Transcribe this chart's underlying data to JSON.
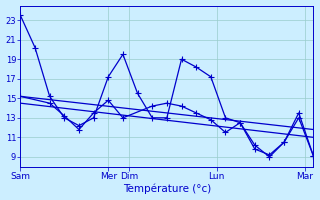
{
  "background_color": "#cceeff",
  "grid_color": "#99cccc",
  "line_color": "#0000cc",
  "xlabel": "Température (°c)",
  "yticks": [
    9,
    11,
    13,
    15,
    17,
    19,
    21,
    23
  ],
  "ylim": [
    8.0,
    24.5
  ],
  "xlim": [
    0,
    20
  ],
  "xtick_positions": [
    0,
    6.0,
    7.4,
    13.4,
    19.4
  ],
  "xtick_labels": [
    "Sam",
    "Mer",
    "Dim",
    "Lun",
    "Mar"
  ],
  "series1": {
    "x": [
      0,
      1,
      2,
      3,
      4,
      5,
      6,
      7,
      8,
      9,
      10,
      11,
      12,
      13,
      14,
      15,
      16,
      17,
      18,
      19,
      20
    ],
    "y": [
      23.5,
      20.2,
      15.2,
      13.0,
      12.2,
      13.0,
      17.2,
      19.5,
      15.5,
      13.0,
      13.0,
      19.0,
      18.2,
      17.2,
      13.0,
      12.5,
      10.2,
      9.0,
      10.5,
      13.0,
      9.1
    ],
    "marker": "+",
    "markersize": 4,
    "linewidth": 0.9
  },
  "series2": {
    "x": [
      0,
      2,
      3,
      4,
      5,
      6,
      7,
      9,
      10,
      11,
      12,
      13,
      14,
      15,
      16,
      17,
      18,
      19,
      20
    ],
    "y": [
      15.2,
      14.5,
      13.2,
      11.8,
      13.5,
      14.8,
      13.0,
      14.2,
      14.5,
      14.2,
      13.5,
      12.8,
      11.5,
      12.5,
      9.8,
      9.2,
      10.5,
      13.5,
      9.1
    ],
    "marker": "+",
    "markersize": 4,
    "linewidth": 0.9
  },
  "series3_x": [
    0,
    20
  ],
  "series3_y": [
    15.2,
    11.8
  ],
  "series4_x": [
    0,
    20
  ],
  "series4_y": [
    14.5,
    11.0
  ]
}
